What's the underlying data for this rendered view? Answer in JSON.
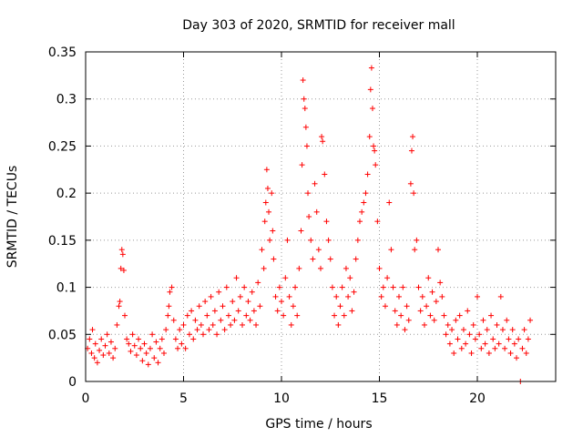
{
  "chart_data": {
    "type": "scatter",
    "title": "Day 303 of 2020, SRMTID for receiver mall",
    "xlabel": "GPS time / hours",
    "ylabel": "SRMTID / TECUs",
    "xlim": [
      0,
      24
    ],
    "ylim": [
      0,
      0.35
    ],
    "xticks": [
      0,
      5,
      10,
      15,
      20
    ],
    "xtick_labels": [
      "0",
      "5",
      "10",
      "15",
      "20"
    ],
    "yticks": [
      0,
      0.05,
      0.1,
      0.15,
      0.2,
      0.25,
      0.3,
      0.35
    ],
    "ytick_labels": [
      "0",
      "0.05",
      "0.1",
      "0.15",
      "0.2",
      "0.25",
      "0.3",
      "0.35"
    ],
    "grid": true,
    "marker": "+",
    "series": [
      {
        "name": "SRMTID",
        "color": "#ff0000",
        "points": [
          [
            0.1,
            0.035
          ],
          [
            0.2,
            0.045
          ],
          [
            0.3,
            0.03
          ],
          [
            0.35,
            0.055
          ],
          [
            0.45,
            0.025
          ],
          [
            0.5,
            0.04
          ],
          [
            0.6,
            0.02
          ],
          [
            0.7,
            0.033
          ],
          [
            0.8,
            0.045
          ],
          [
            0.9,
            0.028
          ],
          [
            1.0,
            0.038
          ],
          [
            1.1,
            0.05
          ],
          [
            1.2,
            0.03
          ],
          [
            1.3,
            0.042
          ],
          [
            1.4,
            0.025
          ],
          [
            1.5,
            0.035
          ],
          [
            1.6,
            0.06
          ],
          [
            1.7,
            0.08
          ],
          [
            1.75,
            0.085
          ],
          [
            1.8,
            0.12
          ],
          [
            1.85,
            0.14
          ],
          [
            1.9,
            0.135
          ],
          [
            1.95,
            0.118
          ],
          [
            2.0,
            0.07
          ],
          [
            2.1,
            0.045
          ],
          [
            2.2,
            0.04
          ],
          [
            2.3,
            0.032
          ],
          [
            2.4,
            0.05
          ],
          [
            2.5,
            0.038
          ],
          [
            2.6,
            0.028
          ],
          [
            2.7,
            0.045
          ],
          [
            2.8,
            0.035
          ],
          [
            2.9,
            0.022
          ],
          [
            3.0,
            0.04
          ],
          [
            3.1,
            0.03
          ],
          [
            3.2,
            0.018
          ],
          [
            3.3,
            0.035
          ],
          [
            3.4,
            0.05
          ],
          [
            3.5,
            0.025
          ],
          [
            3.6,
            0.042
          ],
          [
            3.7,
            0.02
          ],
          [
            3.8,
            0.035
          ],
          [
            3.9,
            0.045
          ],
          [
            4.0,
            0.03
          ],
          [
            4.1,
            0.055
          ],
          [
            4.2,
            0.07
          ],
          [
            4.25,
            0.08
          ],
          [
            4.3,
            0.095
          ],
          [
            4.4,
            0.1
          ],
          [
            4.5,
            0.065
          ],
          [
            4.6,
            0.045
          ],
          [
            4.7,
            0.035
          ],
          [
            4.8,
            0.055
          ],
          [
            4.9,
            0.04
          ],
          [
            5.0,
            0.06
          ],
          [
            5.1,
            0.035
          ],
          [
            5.2,
            0.07
          ],
          [
            5.3,
            0.05
          ],
          [
            5.4,
            0.075
          ],
          [
            5.5,
            0.045
          ],
          [
            5.6,
            0.065
          ],
          [
            5.7,
            0.055
          ],
          [
            5.8,
            0.08
          ],
          [
            5.9,
            0.06
          ],
          [
            6.0,
            0.05
          ],
          [
            6.1,
            0.085
          ],
          [
            6.2,
            0.07
          ],
          [
            6.3,
            0.055
          ],
          [
            6.4,
            0.09
          ],
          [
            6.5,
            0.06
          ],
          [
            6.6,
            0.075
          ],
          [
            6.7,
            0.05
          ],
          [
            6.8,
            0.095
          ],
          [
            6.9,
            0.065
          ],
          [
            7.0,
            0.08
          ],
          [
            7.1,
            0.055
          ],
          [
            7.2,
            0.1
          ],
          [
            7.3,
            0.07
          ],
          [
            7.4,
            0.06
          ],
          [
            7.5,
            0.085
          ],
          [
            7.6,
            0.065
          ],
          [
            7.7,
            0.11
          ],
          [
            7.8,
            0.075
          ],
          [
            7.9,
            0.09
          ],
          [
            8.0,
            0.06
          ],
          [
            8.1,
            0.1
          ],
          [
            8.2,
            0.07
          ],
          [
            8.3,
            0.085
          ],
          [
            8.4,
            0.065
          ],
          [
            8.5,
            0.095
          ],
          [
            8.6,
            0.075
          ],
          [
            8.7,
            0.06
          ],
          [
            8.8,
            0.105
          ],
          [
            8.9,
            0.08
          ],
          [
            9.0,
            0.14
          ],
          [
            9.1,
            0.12
          ],
          [
            9.15,
            0.17
          ],
          [
            9.2,
            0.19
          ],
          [
            9.25,
            0.225
          ],
          [
            9.3,
            0.205
          ],
          [
            9.35,
            0.18
          ],
          [
            9.4,
            0.15
          ],
          [
            9.5,
            0.2
          ],
          [
            9.55,
            0.16
          ],
          [
            9.6,
            0.13
          ],
          [
            9.7,
            0.09
          ],
          [
            9.8,
            0.075
          ],
          [
            9.9,
            0.1
          ],
          [
            10.0,
            0.085
          ],
          [
            10.1,
            0.07
          ],
          [
            10.2,
            0.11
          ],
          [
            10.3,
            0.15
          ],
          [
            10.4,
            0.09
          ],
          [
            10.5,
            0.06
          ],
          [
            10.6,
            0.08
          ],
          [
            10.7,
            0.1
          ],
          [
            10.8,
            0.07
          ],
          [
            10.9,
            0.12
          ],
          [
            11.0,
            0.16
          ],
          [
            11.05,
            0.23
          ],
          [
            11.1,
            0.32
          ],
          [
            11.15,
            0.3
          ],
          [
            11.2,
            0.29
          ],
          [
            11.25,
            0.27
          ],
          [
            11.3,
            0.25
          ],
          [
            11.35,
            0.2
          ],
          [
            11.4,
            0.175
          ],
          [
            11.5,
            0.15
          ],
          [
            11.6,
            0.13
          ],
          [
            11.7,
            0.21
          ],
          [
            11.8,
            0.18
          ],
          [
            11.9,
            0.14
          ],
          [
            12.0,
            0.12
          ],
          [
            12.05,
            0.26
          ],
          [
            12.1,
            0.255
          ],
          [
            12.2,
            0.22
          ],
          [
            12.3,
            0.17
          ],
          [
            12.4,
            0.15
          ],
          [
            12.5,
            0.13
          ],
          [
            12.6,
            0.1
          ],
          [
            12.7,
            0.07
          ],
          [
            12.8,
            0.09
          ],
          [
            12.9,
            0.06
          ],
          [
            13.0,
            0.08
          ],
          [
            13.1,
            0.1
          ],
          [
            13.2,
            0.07
          ],
          [
            13.3,
            0.12
          ],
          [
            13.4,
            0.09
          ],
          [
            13.5,
            0.11
          ],
          [
            13.6,
            0.075
          ],
          [
            13.7,
            0.095
          ],
          [
            13.8,
            0.13
          ],
          [
            13.9,
            0.15
          ],
          [
            14.0,
            0.17
          ],
          [
            14.1,
            0.18
          ],
          [
            14.2,
            0.19
          ],
          [
            14.3,
            0.2
          ],
          [
            14.4,
            0.22
          ],
          [
            14.5,
            0.26
          ],
          [
            14.55,
            0.31
          ],
          [
            14.6,
            0.333
          ],
          [
            14.65,
            0.29
          ],
          [
            14.7,
            0.25
          ],
          [
            14.75,
            0.245
          ],
          [
            14.8,
            0.23
          ],
          [
            14.9,
            0.17
          ],
          [
            15.0,
            0.12
          ],
          [
            15.1,
            0.09
          ],
          [
            15.2,
            0.1
          ],
          [
            15.3,
            0.08
          ],
          [
            15.4,
            0.11
          ],
          [
            15.5,
            0.19
          ],
          [
            15.6,
            0.14
          ],
          [
            15.7,
            0.1
          ],
          [
            15.8,
            0.075
          ],
          [
            15.9,
            0.06
          ],
          [
            16.0,
            0.09
          ],
          [
            16.1,
            0.07
          ],
          [
            16.2,
            0.1
          ],
          [
            16.3,
            0.055
          ],
          [
            16.4,
            0.08
          ],
          [
            16.5,
            0.065
          ],
          [
            16.6,
            0.21
          ],
          [
            16.65,
            0.245
          ],
          [
            16.7,
            0.26
          ],
          [
            16.75,
            0.2
          ],
          [
            16.8,
            0.14
          ],
          [
            16.9,
            0.15
          ],
          [
            17.0,
            0.1
          ],
          [
            17.1,
            0.075
          ],
          [
            17.2,
            0.09
          ],
          [
            17.3,
            0.06
          ],
          [
            17.4,
            0.08
          ],
          [
            17.5,
            0.11
          ],
          [
            17.6,
            0.07
          ],
          [
            17.7,
            0.095
          ],
          [
            17.8,
            0.065
          ],
          [
            17.9,
            0.085
          ],
          [
            18.0,
            0.14
          ],
          [
            18.1,
            0.105
          ],
          [
            18.2,
            0.09
          ],
          [
            18.3,
            0.07
          ],
          [
            18.4,
            0.05
          ],
          [
            18.5,
            0.06
          ],
          [
            18.6,
            0.04
          ],
          [
            18.7,
            0.055
          ],
          [
            18.8,
            0.03
          ],
          [
            18.9,
            0.065
          ],
          [
            19.0,
            0.045
          ],
          [
            19.1,
            0.07
          ],
          [
            19.2,
            0.035
          ],
          [
            19.3,
            0.055
          ],
          [
            19.4,
            0.04
          ],
          [
            19.5,
            0.075
          ],
          [
            19.6,
            0.05
          ],
          [
            19.7,
            0.03
          ],
          [
            19.8,
            0.06
          ],
          [
            19.9,
            0.045
          ],
          [
            20.0,
            0.09
          ],
          [
            20.1,
            0.05
          ],
          [
            20.2,
            0.035
          ],
          [
            20.3,
            0.065
          ],
          [
            20.4,
            0.04
          ],
          [
            20.5,
            0.055
          ],
          [
            20.6,
            0.03
          ],
          [
            20.7,
            0.07
          ],
          [
            20.8,
            0.045
          ],
          [
            20.9,
            0.035
          ],
          [
            21.0,
            0.06
          ],
          [
            21.1,
            0.04
          ],
          [
            21.2,
            0.09
          ],
          [
            21.3,
            0.055
          ],
          [
            21.4,
            0.035
          ],
          [
            21.5,
            0.065
          ],
          [
            21.6,
            0.045
          ],
          [
            21.7,
            0.03
          ],
          [
            21.8,
            0.055
          ],
          [
            21.9,
            0.04
          ],
          [
            22.0,
            0.025
          ],
          [
            22.1,
            0.045
          ],
          [
            22.2,
            0.0
          ],
          [
            22.3,
            0.035
          ],
          [
            22.4,
            0.055
          ],
          [
            22.5,
            0.03
          ],
          [
            22.6,
            0.045
          ],
          [
            22.7,
            0.065
          ]
        ]
      }
    ]
  }
}
